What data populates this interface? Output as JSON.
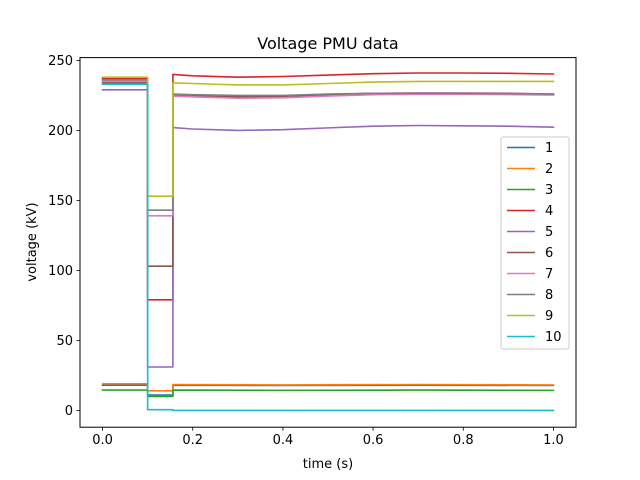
{
  "chart_data": {
    "type": "line",
    "title": "Voltage PMU data",
    "xlabel": "time (s)",
    "ylabel": "voltage (kV)",
    "xlim": [
      -0.05,
      1.05
    ],
    "ylim": [
      -12,
      252
    ],
    "xticks": [
      0.0,
      0.2,
      0.4,
      0.6,
      0.8,
      1.0
    ],
    "xtick_labels": [
      "0.0",
      "0.2",
      "0.4",
      "0.6",
      "0.8",
      "1.0"
    ],
    "yticks": [
      0,
      50,
      100,
      150,
      200,
      250
    ],
    "ytick_labels": [
      "0",
      "50",
      "100",
      "150",
      "200",
      "250"
    ],
    "grid": false,
    "legend_position": "right",
    "series": [
      {
        "name": "1",
        "color": "#1f77b4",
        "x": [
          0,
          0.1,
          0.1,
          0.156,
          0.156,
          0.4,
          0.7,
          1.0
        ],
        "y": [
          18,
          18,
          11,
          11,
          18,
          17.8,
          18,
          17.8
        ]
      },
      {
        "name": "2",
        "color": "#ff7f0e",
        "x": [
          0,
          0.1,
          0.1,
          0.156,
          0.156,
          0.4,
          0.7,
          1.0
        ],
        "y": [
          19,
          19,
          14,
          14,
          18.5,
          18.2,
          18.5,
          18.2
        ]
      },
      {
        "name": "3",
        "color": "#2ca02c",
        "x": [
          0,
          0.1,
          0.1,
          0.156,
          0.156,
          0.4,
          0.7,
          1.0
        ],
        "y": [
          14.5,
          14.5,
          10,
          10,
          14.5,
          14.3,
          14.5,
          14.3
        ]
      },
      {
        "name": "4",
        "color": "#d62728",
        "x": [
          0,
          0.1,
          0.1,
          0.156,
          0.156,
          0.2,
          0.3,
          0.4,
          0.5,
          0.6,
          0.7,
          0.8,
          0.9,
          1.0
        ],
        "y": [
          237,
          237,
          79,
          79,
          240,
          239,
          238,
          238.5,
          239.5,
          240.5,
          241,
          241,
          240.8,
          240.3
        ]
      },
      {
        "name": "5",
        "color": "#9467bd",
        "x": [
          0,
          0.1,
          0.1,
          0.156,
          0.156,
          0.2,
          0.3,
          0.4,
          0.5,
          0.6,
          0.7,
          0.8,
          0.9,
          1.0
        ],
        "y": [
          229,
          229,
          31,
          31,
          202,
          201,
          200,
          200.5,
          201.8,
          203,
          203.5,
          203.3,
          203,
          202.3
        ]
      },
      {
        "name": "6",
        "color": "#8c564b",
        "x": [
          0,
          0.1,
          0.1,
          0.156,
          0.156,
          0.2,
          0.3,
          0.4,
          0.5,
          0.6,
          0.7,
          0.8,
          0.9,
          1.0
        ],
        "y": [
          234,
          234,
          103,
          103,
          225,
          224.5,
          224,
          224.3,
          225.5,
          226.5,
          226.7,
          226.7,
          226.5,
          226
        ]
      },
      {
        "name": "7",
        "color": "#e377c2",
        "x": [
          0,
          0.1,
          0.1,
          0.156,
          0.156,
          0.2,
          0.3,
          0.4,
          0.5,
          0.6,
          0.7,
          0.8,
          0.9,
          1.0
        ],
        "y": [
          235,
          235,
          139,
          139,
          224.5,
          224,
          223,
          223.3,
          224.5,
          225.5,
          225.8,
          225.8,
          225.6,
          225.2
        ]
      },
      {
        "name": "8",
        "color": "#7f7f7f",
        "x": [
          0,
          0.1,
          0.1,
          0.156,
          0.156,
          0.2,
          0.3,
          0.4,
          0.5,
          0.6,
          0.7,
          0.8,
          0.9,
          1.0
        ],
        "y": [
          236,
          236,
          143,
          143,
          226,
          225.5,
          225,
          225,
          226,
          226.5,
          226.6,
          226.5,
          226.3,
          226
        ]
      },
      {
        "name": "9",
        "color": "#bcbd22",
        "x": [
          0,
          0.1,
          0.1,
          0.156,
          0.156,
          0.2,
          0.3,
          0.4,
          0.5,
          0.6,
          0.7,
          0.8,
          0.9,
          1.0
        ],
        "y": [
          238,
          238,
          153,
          153,
          234,
          233.5,
          232.5,
          232.5,
          233.5,
          234.5,
          235,
          235,
          235,
          235
        ]
      },
      {
        "name": "10",
        "color": "#17becf",
        "x": [
          0,
          0.1,
          0.1,
          0.156,
          0.156,
          1.0
        ],
        "y": [
          233,
          233,
          0.5,
          0.5,
          0,
          0
        ]
      }
    ]
  }
}
